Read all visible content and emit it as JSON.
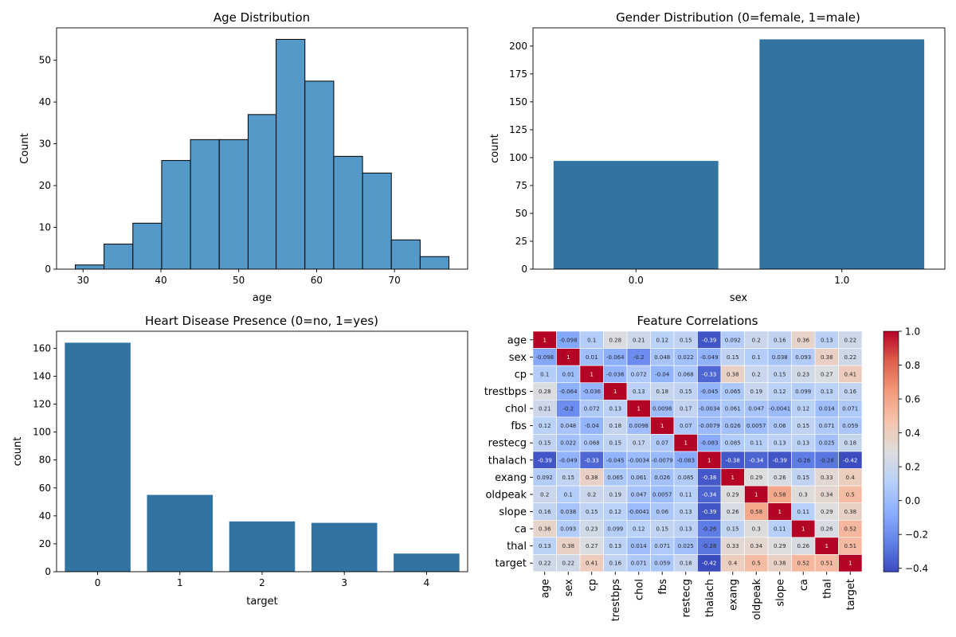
{
  "chart_data": [
    {
      "type": "bar",
      "subtype": "histogram",
      "title": "Age Distribution",
      "xlabel": "age",
      "ylabel": "Count",
      "bin_edges": [
        29,
        32.7,
        36.4,
        40.1,
        43.8,
        47.5,
        51.2,
        54.8,
        58.5,
        62.2,
        65.9,
        69.6,
        73.3,
        77
      ],
      "values": [
        1,
        6,
        11,
        26,
        31,
        31,
        37,
        55,
        45,
        27,
        23,
        7,
        3
      ],
      "xlim": [
        26.6,
        79.4
      ],
      "ylim": [
        0,
        57.75
      ],
      "xticks": [
        "30",
        "40",
        "50",
        "60",
        "70"
      ],
      "yticks": [
        "0",
        "10",
        "20",
        "30",
        "40",
        "50"
      ],
      "color": "#5499c7",
      "grid": false
    },
    {
      "type": "bar",
      "title": "Gender Distribution (0=female, 1=male)",
      "xlabel": "sex",
      "ylabel": "count",
      "categories": [
        "0.0",
        "1.0"
      ],
      "values": [
        97,
        206
      ],
      "ylim": [
        0,
        216.3
      ],
      "yticks": [
        "0",
        "25",
        "50",
        "75",
        "100",
        "125",
        "150",
        "175",
        "200"
      ],
      "color": "#3274a1",
      "grid": false
    },
    {
      "type": "bar",
      "title": "Heart Disease Presence (0=no, 1=yes)",
      "xlabel": "target",
      "ylabel": "count",
      "categories": [
        "0",
        "1",
        "2",
        "3",
        "4"
      ],
      "values": [
        164,
        55,
        36,
        35,
        13
      ],
      "ylim": [
        0,
        172.2
      ],
      "yticks": [
        "0",
        "20",
        "40",
        "60",
        "80",
        "100",
        "120",
        "140",
        "160"
      ],
      "color": "#3274a1",
      "grid": false
    },
    {
      "type": "heatmap",
      "title": "Feature Correlations",
      "labels": [
        "age",
        "sex",
        "cp",
        "trestbps",
        "chol",
        "fbs",
        "restecg",
        "thalach",
        "exang",
        "oldpeak",
        "slope",
        "ca",
        "thal",
        "target"
      ],
      "annotations": [
        [
          "1",
          "-0.098",
          "0.1",
          "0.28",
          "0.21",
          "0.12",
          "0.15",
          "-0.39",
          "0.092",
          "0.2",
          "0.16",
          "0.36",
          "0.13",
          "0.22"
        ],
        [
          "-0.098",
          "1",
          "0.01",
          "-0.064",
          "-0.2",
          "0.048",
          "0.022",
          "-0.049",
          "0.15",
          "0.1",
          "0.038",
          "0.093",
          "0.38",
          "0.22"
        ],
        [
          "0.1",
          "0.01",
          "1",
          "-0.036",
          "0.072",
          "-0.04",
          "0.068",
          "-0.33",
          "0.38",
          "0.2",
          "0.15",
          "0.23",
          "0.27",
          "0.41"
        ],
        [
          "0.28",
          "-0.064",
          "-0.036",
          "1",
          "0.13",
          "0.18",
          "0.15",
          "-0.045",
          "0.065",
          "0.19",
          "0.12",
          "0.099",
          "0.13",
          "0.16"
        ],
        [
          "0.21",
          "-0.2",
          "0.072",
          "0.13",
          "1",
          "0.0098",
          "0.17",
          "-0.0034",
          "0.061",
          "0.047",
          "-0.0041",
          "0.12",
          "0.014",
          "0.071"
        ],
        [
          "0.12",
          "0.048",
          "-0.04",
          "0.18",
          "0.0098",
          "1",
          "0.07",
          "-0.0079",
          "0.026",
          "0.0057",
          "0.06",
          "0.15",
          "0.071",
          "0.059"
        ],
        [
          "0.15",
          "0.022",
          "0.068",
          "0.15",
          "0.17",
          "0.07",
          "1",
          "-0.083",
          "0.085",
          "0.11",
          "0.13",
          "0.13",
          "0.025",
          "0.18"
        ],
        [
          "-0.39",
          "-0.049",
          "-0.33",
          "-0.045",
          "-0.0034",
          "-0.0079",
          "-0.083",
          "1",
          "-0.38",
          "-0.34",
          "-0.39",
          "-0.26",
          "-0.28",
          "-0.42"
        ],
        [
          "0.092",
          "0.15",
          "0.38",
          "0.065",
          "0.061",
          "0.026",
          "0.085",
          "-0.38",
          "1",
          "0.29",
          "0.26",
          "0.15",
          "0.33",
          "0.4"
        ],
        [
          "0.2",
          "0.1",
          "0.2",
          "0.19",
          "0.047",
          "0.0057",
          "0.11",
          "-0.34",
          "0.29",
          "1",
          "0.58",
          "0.3",
          "0.34",
          "0.5"
        ],
        [
          "0.16",
          "0.038",
          "0.15",
          "0.12",
          "-0.0041",
          "0.06",
          "0.13",
          "-0.39",
          "0.26",
          "0.58",
          "1",
          "0.11",
          "0.29",
          "0.38"
        ],
        [
          "0.36",
          "0.093",
          "0.23",
          "0.099",
          "0.12",
          "0.15",
          "0.13",
          "-0.26",
          "0.15",
          "0.3",
          "0.11",
          "1",
          "0.26",
          "0.52"
        ],
        [
          "0.13",
          "0.38",
          "0.27",
          "0.13",
          "0.014",
          "0.071",
          "0.025",
          "-0.28",
          "0.33",
          "0.34",
          "0.29",
          "0.26",
          "1",
          "0.51"
        ],
        [
          "0.22",
          "0.22",
          "0.41",
          "0.16",
          "0.071",
          "0.059",
          "0.18",
          "-0.42",
          "0.4",
          "0.5",
          "0.38",
          "0.52",
          "0.51",
          "1"
        ]
      ],
      "colormap": "coolwarm",
      "vmin": -0.42,
      "vmax": 1.0,
      "colorbar_ticks": [
        "1.0",
        "0.8",
        "0.6",
        "0.4",
        "0.2",
        "0.0",
        "−0.2",
        "−0.4"
      ]
    }
  ]
}
